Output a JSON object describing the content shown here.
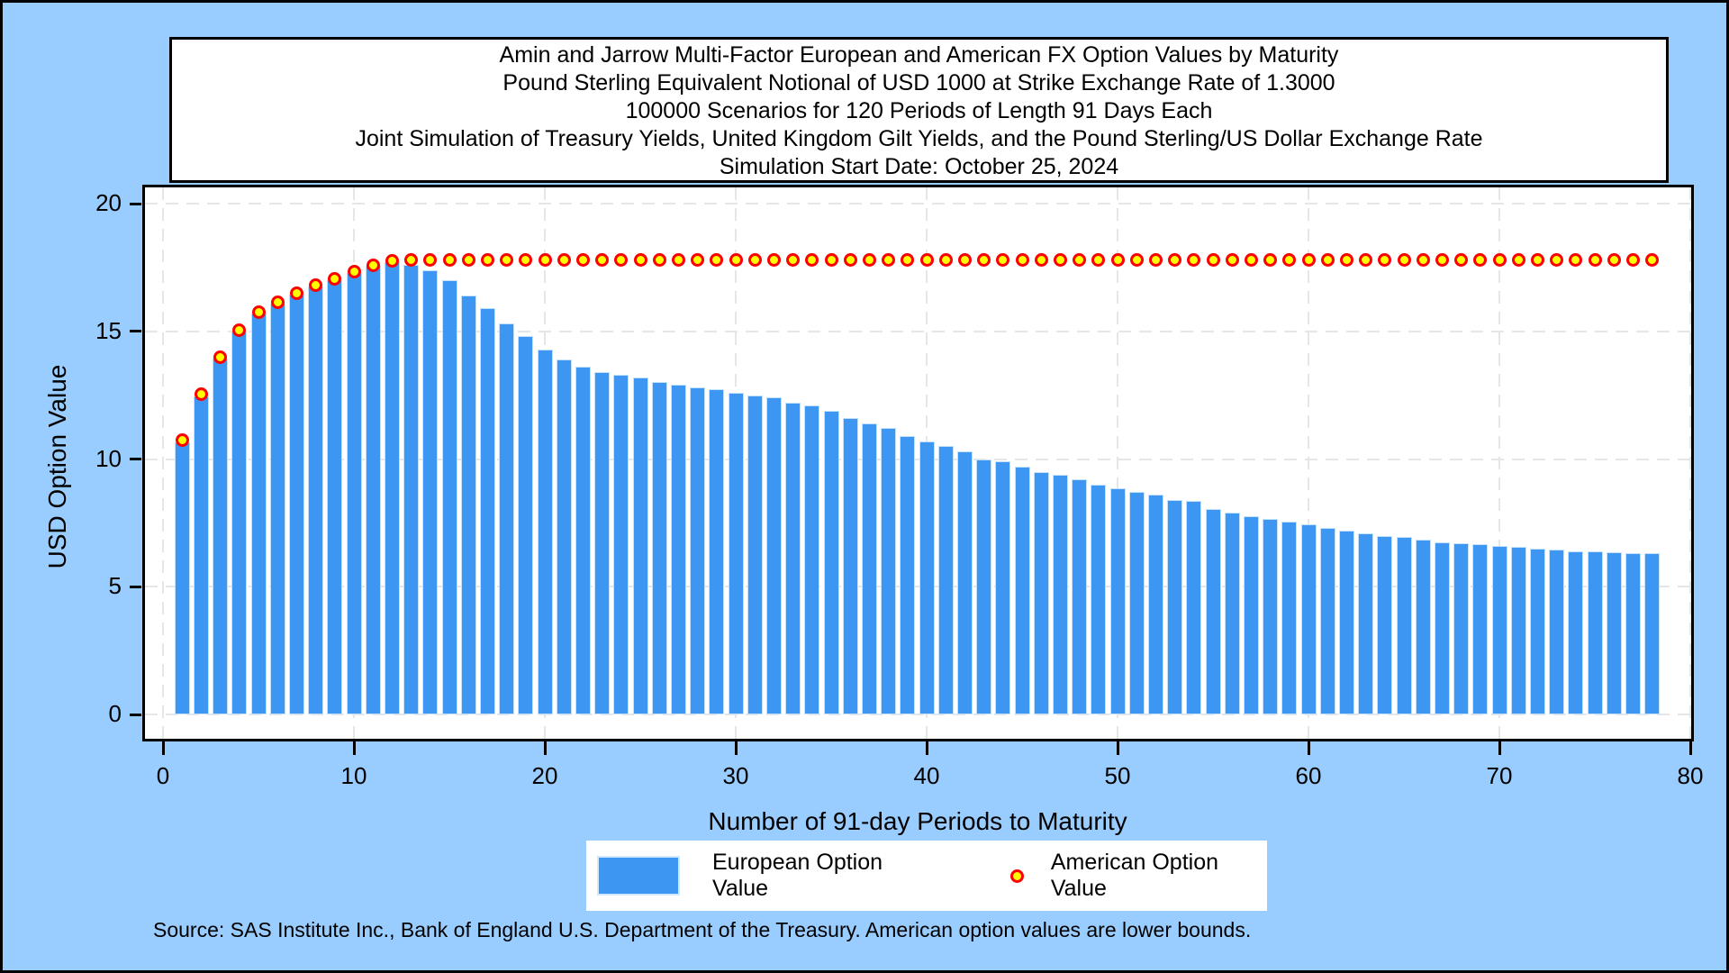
{
  "title_box": {
    "lines": [
      "Amin and Jarrow Multi-Factor European and American FX Option Values by Maturity",
      "Pound Sterling Equivalent Notional of USD 1000 at Strike Exchange Rate of  1.3000",
      "100000 Scenarios for 120 Periods of Length 91 Days Each",
      "Joint Simulation of Treasury Yields, United Kingdom Gilt Yields, and the Pound Sterling/US Dollar Exchange Rate",
      "Simulation Start Date: October 25, 2024"
    ]
  },
  "y_axis": {
    "label": "USD Option Value",
    "ticks": [
      0,
      5,
      10,
      15,
      20
    ],
    "range": [
      0,
      20
    ]
  },
  "x_axis": {
    "label": "Number of 91-day Periods to Maturity",
    "ticks": [
      0,
      10,
      20,
      30,
      40,
      50,
      60,
      70,
      80
    ],
    "range": [
      0,
      80
    ]
  },
  "legend": {
    "items": [
      {
        "label": "European Option Value",
        "swatch": "bar"
      },
      {
        "label": "American Option Value",
        "swatch": "circle"
      }
    ]
  },
  "footnote": "Source: SAS Institute Inc., Bank of England U.S. Department of the Treasury. American option values are lower bounds.",
  "colors": {
    "background": "#99ccff",
    "plot_background": "#ffffff",
    "bar_fill": "#3e96f3",
    "bar_edge": "#c3e1fa",
    "marker_stroke": "#ff0000",
    "marker_fill": "#ffff00",
    "gridline": "#e6e6e6",
    "border": "#000000",
    "text": "#000000"
  },
  "chart_data": {
    "type": "bar",
    "title": "Amin and Jarrow Multi-Factor European and American FX Option Values by Maturity",
    "xlabel": "Number of 91-day Periods to Maturity",
    "ylabel": "USD Option Value",
    "xlim": [
      0,
      80
    ],
    "ylim": [
      0,
      20
    ],
    "grid": "dashed",
    "legend_position": "bottom",
    "x": [
      1,
      2,
      3,
      4,
      5,
      6,
      7,
      8,
      9,
      10,
      11,
      12,
      13,
      14,
      15,
      16,
      17,
      18,
      19,
      20,
      21,
      22,
      23,
      24,
      25,
      26,
      27,
      28,
      29,
      30,
      31,
      32,
      33,
      34,
      35,
      36,
      37,
      38,
      39,
      40,
      41,
      42,
      43,
      44,
      45,
      46,
      47,
      48,
      49,
      50,
      51,
      52,
      53,
      54,
      55,
      56,
      57,
      58,
      59,
      60,
      61,
      62,
      63,
      64,
      65,
      66,
      67,
      68,
      69,
      70,
      71,
      72,
      73,
      74,
      75,
      76,
      77,
      78
    ],
    "series": [
      {
        "name": "European Option Value",
        "type": "bar",
        "color": "#3e96f3",
        "values": [
          10.65,
          12.45,
          13.95,
          15.0,
          15.7,
          16.1,
          16.45,
          16.75,
          17.0,
          17.3,
          17.55,
          17.7,
          17.6,
          17.4,
          17.0,
          16.4,
          15.9,
          15.3,
          14.8,
          14.3,
          13.9,
          13.6,
          13.4,
          13.3,
          13.2,
          13.0,
          12.9,
          12.8,
          12.75,
          12.6,
          12.5,
          12.4,
          12.2,
          12.1,
          11.9,
          11.6,
          11.4,
          11.2,
          10.9,
          10.7,
          10.5,
          10.3,
          10.0,
          9.9,
          9.7,
          9.5,
          9.4,
          9.2,
          9.0,
          8.85,
          8.7,
          8.6,
          8.4,
          8.35,
          8.05,
          7.9,
          7.75,
          7.65,
          7.55,
          7.45,
          7.3,
          7.2,
          7.1,
          7.0,
          6.95,
          6.85,
          6.75,
          6.7,
          6.65,
          6.6,
          6.55,
          6.5,
          6.45,
          6.4,
          6.4,
          6.35,
          6.3,
          6.3
        ]
      },
      {
        "name": "American Option Value",
        "type": "scatter",
        "marker": "circle",
        "stroke": "#ff0000",
        "fill": "#ffff00",
        "values": [
          10.75,
          12.55,
          14.0,
          15.05,
          15.75,
          16.15,
          16.5,
          16.8,
          17.05,
          17.35,
          17.6,
          17.75,
          17.8,
          17.8,
          17.8,
          17.8,
          17.8,
          17.8,
          17.8,
          17.8,
          17.8,
          17.8,
          17.8,
          17.8,
          17.8,
          17.8,
          17.8,
          17.8,
          17.8,
          17.8,
          17.8,
          17.8,
          17.8,
          17.8,
          17.8,
          17.8,
          17.8,
          17.8,
          17.8,
          17.8,
          17.8,
          17.8,
          17.8,
          17.8,
          17.8,
          17.8,
          17.8,
          17.8,
          17.8,
          17.8,
          17.8,
          17.8,
          17.8,
          17.8,
          17.8,
          17.8,
          17.8,
          17.8,
          17.8,
          17.8,
          17.8,
          17.8,
          17.8,
          17.8,
          17.8,
          17.8,
          17.8,
          17.8,
          17.8,
          17.8,
          17.8,
          17.8,
          17.8,
          17.8,
          17.8,
          17.8,
          17.8,
          17.8
        ]
      }
    ]
  }
}
